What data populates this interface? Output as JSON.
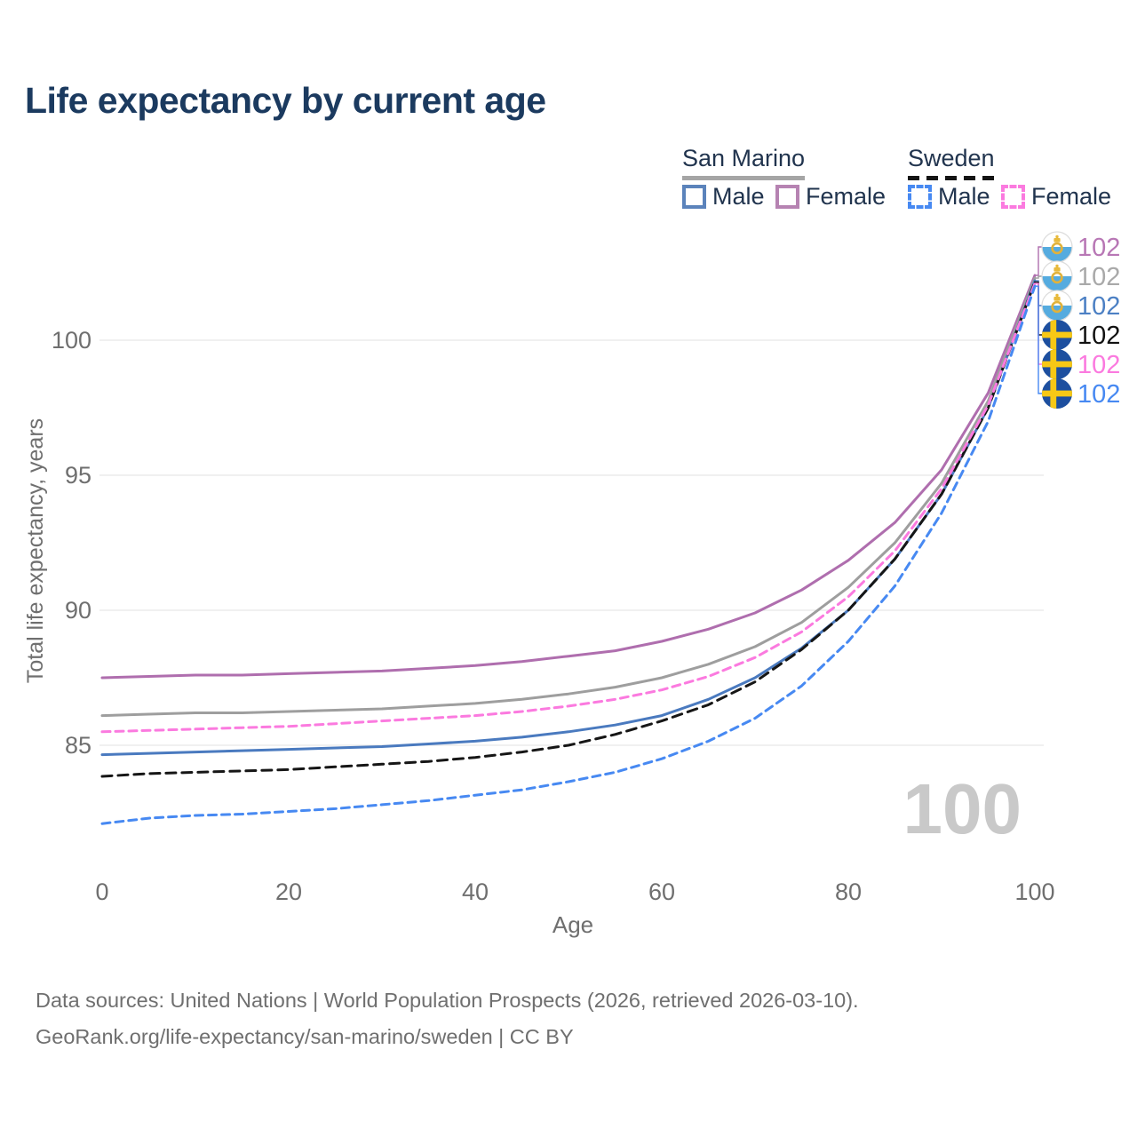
{
  "page": {
    "title": "Life expectancy by current age"
  },
  "legend": {
    "groups": [
      {
        "name": "San Marino",
        "line_style": "solid",
        "line_color": "#a5a5a5",
        "items": [
          {
            "label": "Male",
            "color": "#5b83bb",
            "dash": false
          },
          {
            "label": "Female",
            "color": "#b683b2",
            "dash": false
          }
        ]
      },
      {
        "name": "Sweden",
        "line_style": "dashed",
        "line_color": "#141414",
        "items": [
          {
            "label": "Male",
            "color": "#4789f2",
            "dash": true
          },
          {
            "label": "Female",
            "color": "#fb7adf",
            "dash": true
          }
        ]
      }
    ]
  },
  "chart_data": {
    "type": "line",
    "title": "Life expectancy by current age",
    "xlabel": "Age",
    "ylabel": "Total life expectancy, years",
    "watermark": "100",
    "grid": "horizontal",
    "legend_position": "top-right",
    "xlim": [
      0,
      100
    ],
    "ylim": [
      80.5,
      103
    ],
    "x_ticks": [
      0,
      20,
      40,
      60,
      80,
      100
    ],
    "y_ticks": [
      100,
      95,
      90,
      85
    ],
    "x": [
      0,
      5,
      10,
      15,
      20,
      25,
      30,
      35,
      40,
      45,
      50,
      55,
      60,
      65,
      70,
      75,
      80,
      85,
      90,
      95,
      100
    ],
    "series": [
      {
        "id": "san-marino-female",
        "country": "San Marino",
        "sex": "Female",
        "color": "#af6eae",
        "dash": null,
        "flag": "san-marino",
        "endpoint_label": "102",
        "label_color": "#b877b5",
        "values": [
          87.5,
          87.55,
          87.6,
          87.6,
          87.65,
          87.7,
          87.75,
          87.85,
          87.95,
          88.1,
          88.3,
          88.5,
          88.85,
          89.3,
          89.9,
          90.75,
          91.85,
          93.25,
          95.2,
          98.05,
          102.4
        ]
      },
      {
        "id": "san-marino-total",
        "country": "San Marino",
        "sex": "Both",
        "color": "#9e9e9e",
        "dash": null,
        "flag": "san-marino",
        "endpoint_label": "102",
        "label_color": "#a9a9a9",
        "values": [
          86.1,
          86.15,
          86.2,
          86.2,
          86.25,
          86.3,
          86.35,
          86.45,
          86.55,
          86.7,
          86.9,
          87.15,
          87.5,
          88.0,
          88.65,
          89.55,
          90.85,
          92.5,
          94.7,
          97.75,
          102.3
        ]
      },
      {
        "id": "san-marino-male",
        "country": "San Marino",
        "sex": "Male",
        "color": "#4a7abf",
        "dash": null,
        "flag": "san-marino",
        "endpoint_label": "102",
        "label_color": "#4c80c4",
        "values": [
          84.65,
          84.7,
          84.75,
          84.8,
          84.85,
          84.9,
          84.95,
          85.05,
          85.15,
          85.3,
          85.5,
          85.75,
          86.1,
          86.7,
          87.5,
          88.6,
          90.0,
          91.9,
          94.3,
          97.5,
          102.2
        ]
      },
      {
        "id": "sweden-total",
        "country": "Sweden",
        "sex": "Both",
        "color": "#161616",
        "dash": "11 7",
        "flag": "sweden",
        "endpoint_label": "102",
        "label_color": "#111111",
        "values": [
          83.85,
          83.95,
          84.0,
          84.05,
          84.1,
          84.2,
          84.3,
          84.4,
          84.55,
          84.75,
          85.0,
          85.4,
          85.9,
          86.5,
          87.35,
          88.55,
          90.0,
          91.9,
          94.3,
          97.5,
          102.15
        ]
      },
      {
        "id": "sweden-female",
        "country": "Sweden",
        "sex": "Female",
        "color": "#fb7adf",
        "dash": "9 6",
        "flag": "sweden",
        "endpoint_label": "102",
        "label_color": "#fb7adf",
        "values": [
          85.5,
          85.55,
          85.6,
          85.65,
          85.7,
          85.8,
          85.9,
          86.0,
          86.1,
          86.25,
          86.45,
          86.7,
          87.05,
          87.55,
          88.25,
          89.2,
          90.5,
          92.2,
          94.5,
          97.6,
          102.1
        ]
      },
      {
        "id": "sweden-male",
        "country": "Sweden",
        "sex": "Male",
        "color": "#4789f2",
        "dash": "9 6",
        "flag": "sweden",
        "endpoint_label": "102",
        "label_color": "#4789f2",
        "values": [
          82.1,
          82.3,
          82.4,
          82.45,
          82.55,
          82.65,
          82.8,
          82.95,
          83.15,
          83.35,
          83.65,
          84.0,
          84.5,
          85.15,
          86.0,
          87.2,
          88.85,
          90.9,
          93.6,
          97.0,
          102.0
        ]
      }
    ]
  },
  "footer": {
    "line1": "Data sources: United Nations | World Population Prospects (2026, retrieved 2026-03-10).",
    "line2": "GeoRank.org/life-expectancy/san-marino/sweden | CC BY"
  }
}
